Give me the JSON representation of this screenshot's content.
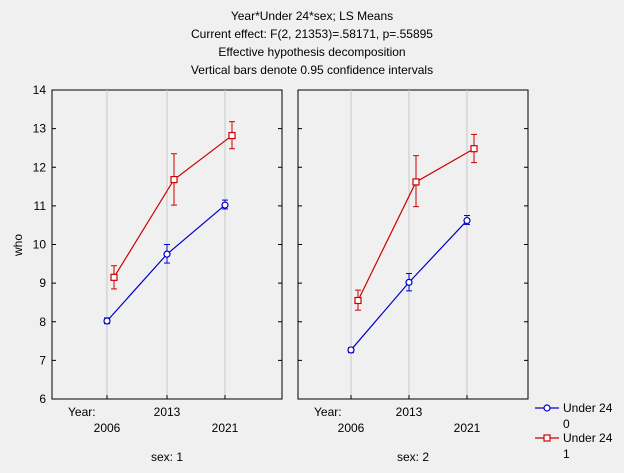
{
  "chart_data": {
    "type": "line",
    "title_lines": [
      "Year*Under 24*sex; LS Means",
      "Current effect: F(2, 21353)=.58171, p=.55895",
      "Effective hypothesis decomposition",
      "Vertical bars denote 0.95 confidence intervals"
    ],
    "ylabel": "who",
    "ylim": [
      6,
      14
    ],
    "yticks": [
      "6",
      "7",
      "8",
      "9",
      "10",
      "11",
      "12",
      "13",
      "14"
    ],
    "x_factor_label": "Year:",
    "x": [
      "2006",
      "2013",
      "2021"
    ],
    "panels": [
      {
        "label": "sex: 1",
        "series": [
          {
            "name": "Under 24 0",
            "color": "#0000cc",
            "marker": "circle",
            "values": [
              8.02,
              9.75,
              11.02
            ],
            "ci_low": [
              7.95,
              9.52,
              10.92
            ],
            "ci_high": [
              8.1,
              10.0,
              11.15
            ]
          },
          {
            "name": "Under 24 1",
            "color": "#cc0000",
            "marker": "square",
            "values": [
              9.15,
              11.68,
              12.82
            ],
            "ci_low": [
              8.85,
              11.02,
              12.48
            ],
            "ci_high": [
              9.45,
              12.35,
              13.18
            ]
          }
        ]
      },
      {
        "label": "sex: 2",
        "series": [
          {
            "name": "Under 24 0",
            "color": "#0000cc",
            "marker": "circle",
            "values": [
              7.27,
              9.02,
              10.62
            ],
            "ci_low": [
              7.2,
              8.8,
              10.52
            ],
            "ci_high": [
              7.33,
              9.25,
              10.75
            ]
          },
          {
            "name": "Under 24 1",
            "color": "#cc0000",
            "marker": "square",
            "values": [
              8.55,
              11.62,
              12.48
            ],
            "ci_low": [
              8.3,
              10.98,
              12.12
            ],
            "ci_high": [
              8.82,
              12.3,
              12.85
            ]
          }
        ]
      }
    ],
    "legend": {
      "position": "bottom-right",
      "entries": [
        {
          "line1": "Under 24",
          "line2": "0",
          "color": "#0000cc",
          "marker": "circle"
        },
        {
          "line1": "Under 24",
          "line2": "1",
          "color": "#cc0000",
          "marker": "square"
        }
      ]
    },
    "grid": true
  }
}
